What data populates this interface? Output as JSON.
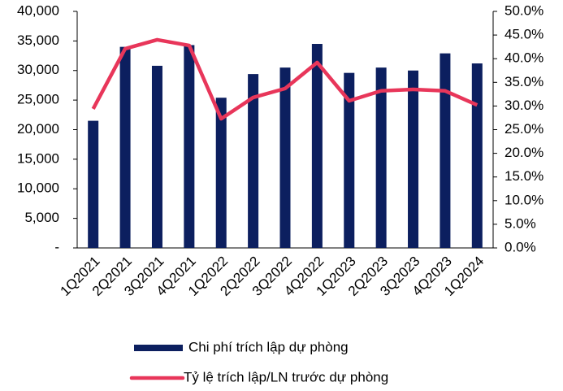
{
  "chart_data": {
    "type": "bar-line",
    "categories": [
      "1Q2021",
      "2Q2021",
      "3Q2021",
      "4Q2021",
      "1Q2022",
      "2Q2022",
      "3Q2022",
      "4Q2022",
      "1Q2023",
      "2Q2023",
      "3Q2023",
      "4Q2023",
      "1Q2024"
    ],
    "series": [
      {
        "name": "Chi phí trích lập dự phòng",
        "type": "bar",
        "color": "#0c1f5f",
        "values": [
          21500,
          34000,
          30800,
          34300,
          25400,
          29400,
          30500,
          34500,
          29600,
          30500,
          30000,
          32900,
          31200
        ]
      },
      {
        "name": "Tỷ lệ trích lập/LN trước dự phòng",
        "type": "line",
        "axis": "y2",
        "color": "#e8365a",
        "values": [
          29.4,
          42.1,
          44.0,
          42.8,
          27.3,
          31.8,
          33.7,
          39.2,
          31.1,
          33.2,
          33.5,
          33.2,
          30.2
        ]
      }
    ],
    "ylim": [
      0,
      40000
    ],
    "yticks": [
      {
        "value": 0,
        "label": "-"
      },
      {
        "value": 5000,
        "label": "5,000"
      },
      {
        "value": 10000,
        "label": "10,000"
      },
      {
        "value": 15000,
        "label": "15,000"
      },
      {
        "value": 20000,
        "label": "20,000"
      },
      {
        "value": 25000,
        "label": "25,000"
      },
      {
        "value": 30000,
        "label": "30,000"
      },
      {
        "value": 35000,
        "label": "35,000"
      },
      {
        "value": 40000,
        "label": "40,000"
      }
    ],
    "y2lim": [
      0,
      50
    ],
    "y2ticks": [
      {
        "value": 0,
        "label": "0.0%"
      },
      {
        "value": 5,
        "label": "5.0%"
      },
      {
        "value": 10,
        "label": "10.0%"
      },
      {
        "value": 15,
        "label": "15.0%"
      },
      {
        "value": 20,
        "label": "20.0%"
      },
      {
        "value": 25,
        "label": "25.0%"
      },
      {
        "value": 30,
        "label": "30.0%"
      },
      {
        "value": 35,
        "label": "35.0%"
      },
      {
        "value": 40,
        "label": "40.0%"
      },
      {
        "value": 45,
        "label": "45.0%"
      },
      {
        "value": 50,
        "label": "50.0%"
      }
    ],
    "grid": false
  }
}
